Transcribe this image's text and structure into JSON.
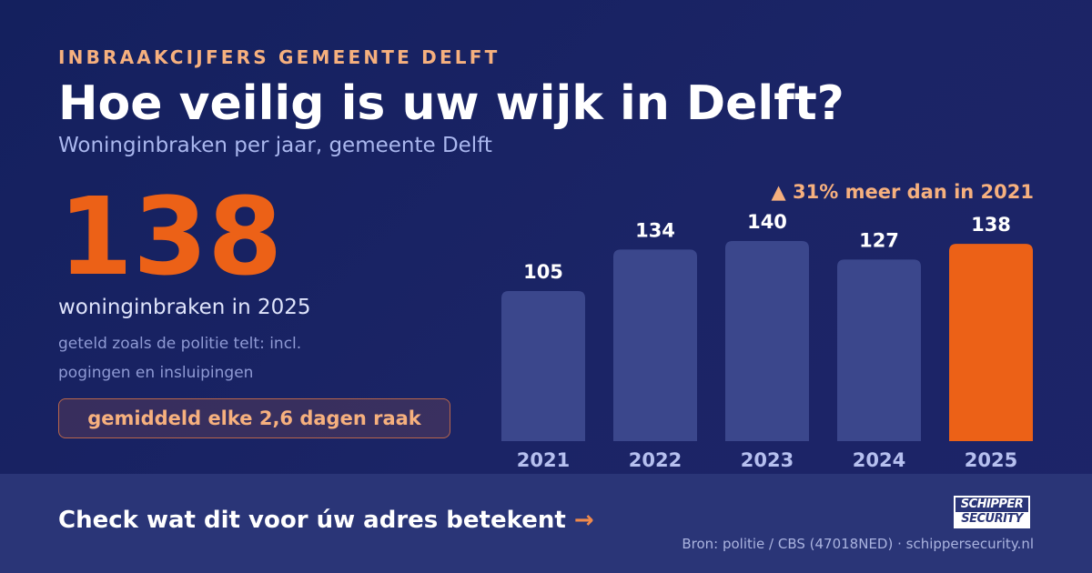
{
  "header": {
    "eyebrow": "INBRAAKCIJFERS GEMEENTE DELFT",
    "title": "Hoe veilig is uw wijk in Delft?",
    "subtitle": "Woninginbraken per jaar, gemeente Delft"
  },
  "highlight": {
    "value": "138",
    "caption": "woninginbraken in 2025",
    "note": "geteld zoals de politie telt: incl. pogingen en insluipingen",
    "pill": "gemiddeld elke 2,6 dagen raak"
  },
  "delta": "▲ 31% meer dan in 2021",
  "colors": {
    "background": "#1b2466",
    "bar": "#3b478c",
    "highlight_bar": "#ec6117",
    "accent": "#f6b07e"
  },
  "chart_data": {
    "type": "bar",
    "categories": [
      "2021",
      "2022",
      "2023",
      "2024",
      "2025"
    ],
    "values": [
      105,
      134,
      140,
      127,
      138
    ],
    "highlight_index": 4,
    "ylim": [
      0,
      140
    ],
    "grid": false,
    "title": "",
    "xlabel": "",
    "ylabel": ""
  },
  "footer": {
    "cta": "Check wat dit voor úw adres betekent",
    "cta_arrow": "→",
    "logo_line1": "SCHIPPER",
    "logo_line2": "SECURITY",
    "source": "Bron: politie / CBS (47018NED) · schippersecurity.nl"
  }
}
